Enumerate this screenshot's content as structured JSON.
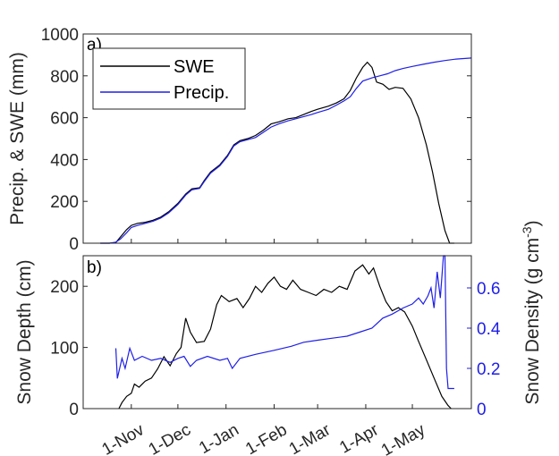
{
  "chart_data": [
    {
      "type": "line",
      "panel_label": "a)",
      "ylabel": "Precip. & SWE (mm)",
      "ylim": [
        0,
        1000
      ],
      "yticks": [
        0,
        200,
        400,
        600,
        800,
        1000
      ],
      "xlim": [
        "2016-10-01",
        "2017-06-08"
      ],
      "legend": {
        "placement": "top-left"
      },
      "grid": false,
      "series": [
        {
          "name": "SWE",
          "color": "#000000",
          "points": [
            [
              "2016-10-12",
              0
            ],
            [
              "2016-10-18",
              0
            ],
            [
              "2016-10-22",
              3
            ],
            [
              "2016-10-25",
              30
            ],
            [
              "2016-10-29",
              65
            ],
            [
              "2016-11-01",
              85
            ],
            [
              "2016-11-05",
              95
            ],
            [
              "2016-11-10",
              100
            ],
            [
              "2016-11-15",
              110
            ],
            [
              "2016-11-20",
              125
            ],
            [
              "2016-11-25",
              150
            ],
            [
              "2016-12-01",
              190
            ],
            [
              "2016-12-06",
              235
            ],
            [
              "2016-12-10",
              260
            ],
            [
              "2016-12-15",
              265
            ],
            [
              "2016-12-18",
              300
            ],
            [
              "2016-12-22",
              340
            ],
            [
              "2016-12-28",
              375
            ],
            [
              "2017-01-02",
              420
            ],
            [
              "2017-01-06",
              470
            ],
            [
              "2017-01-10",
              490
            ],
            [
              "2017-01-15",
              500
            ],
            [
              "2017-01-20",
              515
            ],
            [
              "2017-01-25",
              540
            ],
            [
              "2017-01-30",
              570
            ],
            [
              "2017-02-04",
              580
            ],
            [
              "2017-02-10",
              595
            ],
            [
              "2017-02-15",
              600
            ],
            [
              "2017-02-20",
              615
            ],
            [
              "2017-02-25",
              630
            ],
            [
              "2017-03-01",
              640
            ],
            [
              "2017-03-08",
              655
            ],
            [
              "2017-03-13",
              670
            ],
            [
              "2017-03-18",
              690
            ],
            [
              "2017-03-22",
              730
            ],
            [
              "2017-03-26",
              790
            ],
            [
              "2017-03-30",
              840
            ],
            [
              "2017-04-02",
              865
            ],
            [
              "2017-04-05",
              840
            ],
            [
              "2017-04-08",
              770
            ],
            [
              "2017-04-12",
              760
            ],
            [
              "2017-04-16",
              735
            ],
            [
              "2017-04-20",
              745
            ],
            [
              "2017-04-25",
              740
            ],
            [
              "2017-04-30",
              690
            ],
            [
              "2017-05-05",
              600
            ],
            [
              "2017-05-10",
              470
            ],
            [
              "2017-05-14",
              340
            ],
            [
              "2017-05-18",
              190
            ],
            [
              "2017-05-22",
              60
            ],
            [
              "2017-05-25",
              0
            ],
            [
              "2017-05-28",
              0
            ]
          ]
        },
        {
          "name": "Precip.",
          "color": "#1f1fe6",
          "points": [
            [
              "2016-10-12",
              0
            ],
            [
              "2016-10-18",
              0
            ],
            [
              "2016-10-22",
              5
            ],
            [
              "2016-10-25",
              20
            ],
            [
              "2016-10-29",
              50
            ],
            [
              "2016-11-01",
              75
            ],
            [
              "2016-11-05",
              85
            ],
            [
              "2016-11-10",
              95
            ],
            [
              "2016-11-15",
              105
            ],
            [
              "2016-11-20",
              120
            ],
            [
              "2016-11-25",
              145
            ],
            [
              "2016-12-01",
              185
            ],
            [
              "2016-12-06",
              230
            ],
            [
              "2016-12-10",
              255
            ],
            [
              "2016-12-15",
              262
            ],
            [
              "2016-12-18",
              295
            ],
            [
              "2016-12-22",
              335
            ],
            [
              "2016-12-28",
              370
            ],
            [
              "2017-01-02",
              415
            ],
            [
              "2017-01-06",
              465
            ],
            [
              "2017-01-10",
              485
            ],
            [
              "2017-01-15",
              495
            ],
            [
              "2017-01-20",
              505
            ],
            [
              "2017-01-25",
              530
            ],
            [
              "2017-01-30",
              555
            ],
            [
              "2017-02-04",
              570
            ],
            [
              "2017-02-10",
              585
            ],
            [
              "2017-02-15",
              595
            ],
            [
              "2017-02-20",
              605
            ],
            [
              "2017-02-25",
              615
            ],
            [
              "2017-03-01",
              625
            ],
            [
              "2017-03-08",
              640
            ],
            [
              "2017-03-13",
              660
            ],
            [
              "2017-03-18",
              680
            ],
            [
              "2017-03-22",
              700
            ],
            [
              "2017-03-26",
              740
            ],
            [
              "2017-03-30",
              775
            ],
            [
              "2017-04-05",
              790
            ],
            [
              "2017-04-10",
              800
            ],
            [
              "2017-04-15",
              810
            ],
            [
              "2017-04-20",
              825
            ],
            [
              "2017-04-25",
              835
            ],
            [
              "2017-05-01",
              845
            ],
            [
              "2017-05-08",
              855
            ],
            [
              "2017-05-15",
              865
            ],
            [
              "2017-05-22",
              873
            ],
            [
              "2017-05-29",
              880
            ],
            [
              "2017-06-08",
              885
            ]
          ]
        }
      ]
    },
    {
      "type": "line",
      "panel_label": "b)",
      "ylabel": "Snow Depth (cm)",
      "ylim": [
        0,
        250
      ],
      "yticks": [
        0,
        100,
        200
      ],
      "y2label": "Snow Density (g cm-3)",
      "y2label_parts": [
        "Snow Density (g cm",
        "-3",
        ")"
      ],
      "y2lim": [
        0,
        0.76
      ],
      "y2ticks": [
        0,
        0.2,
        0.4,
        0.6
      ],
      "y2ticklabels": [
        "0",
        "0.2",
        "0.4",
        "0.6"
      ],
      "y2color": "#1f1fe6",
      "xlim": [
        "2016-10-01",
        "2017-06-08"
      ],
      "xticks": [
        "2016-11-01",
        "2016-12-01",
        "2017-01-01",
        "2017-02-01",
        "2017-03-01",
        "2017-04-01",
        "2017-05-01"
      ],
      "xticklabels": [
        "1-Nov",
        "1-Dec",
        "1-Jan",
        "1-Feb",
        "1-Mar",
        "1-Apr",
        "1-May"
      ],
      "grid": false,
      "series": [
        {
          "name": "Snow Depth",
          "axis": "left",
          "color": "#000000",
          "points": [
            [
              "2016-10-24",
              0
            ],
            [
              "2016-10-26",
              10
            ],
            [
              "2016-10-29",
              20
            ],
            [
              "2016-11-01",
              25
            ],
            [
              "2016-11-03",
              40
            ],
            [
              "2016-11-06",
              35
            ],
            [
              "2016-11-10",
              45
            ],
            [
              "2016-11-14",
              50
            ],
            [
              "2016-11-18",
              65
            ],
            [
              "2016-11-22",
              85
            ],
            [
              "2016-11-26",
              70
            ],
            [
              "2016-11-30",
              90
            ],
            [
              "2016-12-03",
              100
            ],
            [
              "2016-12-06",
              148
            ],
            [
              "2016-12-09",
              125
            ],
            [
              "2016-12-13",
              108
            ],
            [
              "2016-12-18",
              110
            ],
            [
              "2016-12-22",
              130
            ],
            [
              "2016-12-26",
              170
            ],
            [
              "2016-12-29",
              185
            ],
            [
              "2017-01-03",
              175
            ],
            [
              "2017-01-08",
              180
            ],
            [
              "2017-01-12",
              165
            ],
            [
              "2017-01-16",
              180
            ],
            [
              "2017-01-20",
              200
            ],
            [
              "2017-01-24",
              190
            ],
            [
              "2017-01-28",
              205
            ],
            [
              "2017-02-01",
              215
            ],
            [
              "2017-02-05",
              200
            ],
            [
              "2017-02-09",
              195
            ],
            [
              "2017-02-13",
              210
            ],
            [
              "2017-02-18",
              195
            ],
            [
              "2017-02-23",
              190
            ],
            [
              "2017-02-28",
              185
            ],
            [
              "2017-03-05",
              195
            ],
            [
              "2017-03-10",
              190
            ],
            [
              "2017-03-15",
              200
            ],
            [
              "2017-03-20",
              195
            ],
            [
              "2017-03-25",
              225
            ],
            [
              "2017-03-30",
              235
            ],
            [
              "2017-04-03",
              220
            ],
            [
              "2017-04-06",
              230
            ],
            [
              "2017-04-10",
              200
            ],
            [
              "2017-04-14",
              175
            ],
            [
              "2017-04-18",
              160
            ],
            [
              "2017-04-22",
              165
            ],
            [
              "2017-04-26",
              158
            ],
            [
              "2017-05-01",
              135
            ],
            [
              "2017-05-05",
              110
            ],
            [
              "2017-05-10",
              80
            ],
            [
              "2017-05-15",
              50
            ],
            [
              "2017-05-20",
              20
            ],
            [
              "2017-05-24",
              5
            ],
            [
              "2017-05-26",
              0
            ]
          ]
        },
        {
          "name": "Snow Density",
          "axis": "right",
          "color": "#1f1fe6",
          "points": [
            [
              "2016-10-22",
              0.3
            ],
            [
              "2016-10-23",
              0.15
            ],
            [
              "2016-10-26",
              0.25
            ],
            [
              "2016-10-28",
              0.2
            ],
            [
              "2016-10-31",
              0.3
            ],
            [
              "2016-11-03",
              0.24
            ],
            [
              "2016-11-08",
              0.26
            ],
            [
              "2016-11-14",
              0.24
            ],
            [
              "2016-11-20",
              0.25
            ],
            [
              "2016-11-26",
              0.23
            ],
            [
              "2016-12-01",
              0.25
            ],
            [
              "2016-12-05",
              0.26
            ],
            [
              "2016-12-09",
              0.21
            ],
            [
              "2016-12-13",
              0.24
            ],
            [
              "2016-12-20",
              0.26
            ],
            [
              "2016-12-28",
              0.24
            ],
            [
              "2017-01-02",
              0.25
            ],
            [
              "2017-01-05",
              0.2
            ],
            [
              "2017-01-10",
              0.25
            ],
            [
              "2017-01-20",
              0.27
            ],
            [
              "2017-02-01",
              0.29
            ],
            [
              "2017-02-12",
              0.31
            ],
            [
              "2017-02-20",
              0.33
            ],
            [
              "2017-03-01",
              0.34
            ],
            [
              "2017-03-10",
              0.35
            ],
            [
              "2017-03-20",
              0.36
            ],
            [
              "2017-03-28",
              0.38
            ],
            [
              "2017-04-05",
              0.4
            ],
            [
              "2017-04-12",
              0.45
            ],
            [
              "2017-04-18",
              0.47
            ],
            [
              "2017-04-25",
              0.5
            ],
            [
              "2017-05-01",
              0.52
            ],
            [
              "2017-05-05",
              0.55
            ],
            [
              "2017-05-08",
              0.52
            ],
            [
              "2017-05-11",
              0.56
            ],
            [
              "2017-05-13",
              0.6
            ],
            [
              "2017-05-15",
              0.5
            ],
            [
              "2017-05-17",
              0.68
            ],
            [
              "2017-05-19",
              0.55
            ],
            [
              "2017-05-21",
              0.76
            ],
            [
              "2017-05-22",
              0.76
            ],
            [
              "2017-05-23",
              0.2
            ],
            [
              "2017-05-24",
              0.1
            ],
            [
              "2017-05-28",
              0.1
            ]
          ]
        }
      ]
    }
  ]
}
